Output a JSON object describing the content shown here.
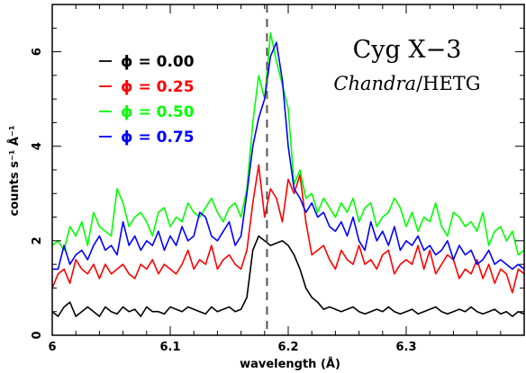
{
  "chart_data": {
    "type": "line",
    "title": "Cyg X−3",
    "subtitle_italic": "Chandra",
    "subtitle_rest": "/HETG",
    "xlabel": "wavelength (Å)",
    "ylabel": "counts s⁻¹ Å⁻¹",
    "xlim": [
      6.0,
      6.4
    ],
    "ylim": [
      0,
      7
    ],
    "xticks": [
      6.0,
      6.1,
      6.2,
      6.3
    ],
    "xtick_labels": [
      "6",
      "6.1",
      "6.2",
      "6.3"
    ],
    "yticks": [
      0,
      2,
      4,
      6
    ],
    "ytick_labels": [
      "0",
      "2",
      "4",
      "6"
    ],
    "reference_line": 6.182,
    "legend_placement": "top-left",
    "grid": false,
    "x": [
      6.0,
      6.005,
      6.01,
      6.015,
      6.02,
      6.025,
      6.03,
      6.035,
      6.04,
      6.045,
      6.05,
      6.055,
      6.06,
      6.065,
      6.07,
      6.075,
      6.08,
      6.085,
      6.09,
      6.095,
      6.1,
      6.105,
      6.11,
      6.115,
      6.12,
      6.125,
      6.13,
      6.135,
      6.14,
      6.145,
      6.15,
      6.155,
      6.16,
      6.165,
      6.17,
      6.175,
      6.18,
      6.185,
      6.19,
      6.195,
      6.2,
      6.205,
      6.21,
      6.215,
      6.22,
      6.225,
      6.23,
      6.235,
      6.24,
      6.245,
      6.25,
      6.255,
      6.26,
      6.265,
      6.27,
      6.275,
      6.28,
      6.285,
      6.29,
      6.295,
      6.3,
      6.305,
      6.31,
      6.315,
      6.32,
      6.325,
      6.33,
      6.335,
      6.34,
      6.345,
      6.35,
      6.355,
      6.36,
      6.365,
      6.37,
      6.375,
      6.38,
      6.385,
      6.39,
      6.395,
      6.4
    ],
    "series": [
      {
        "name": "ϕ = 0.00",
        "color": "#000000",
        "values": [
          0.5,
          0.4,
          0.6,
          0.7,
          0.4,
          0.5,
          0.6,
          0.5,
          0.4,
          0.6,
          0.5,
          0.45,
          0.6,
          0.5,
          0.55,
          0.4,
          0.6,
          0.5,
          0.5,
          0.45,
          0.6,
          0.55,
          0.5,
          0.6,
          0.55,
          0.5,
          0.45,
          0.6,
          0.5,
          0.55,
          0.6,
          0.5,
          0.55,
          0.8,
          1.8,
          2.1,
          2.0,
          1.9,
          1.95,
          2.0,
          1.9,
          1.7,
          1.4,
          1.0,
          0.8,
          0.7,
          0.55,
          0.6,
          0.55,
          0.5,
          0.55,
          0.6,
          0.5,
          0.45,
          0.5,
          0.55,
          0.5,
          0.6,
          0.5,
          0.45,
          0.5,
          0.55,
          0.45,
          0.5,
          0.55,
          0.6,
          0.5,
          0.45,
          0.5,
          0.55,
          0.5,
          0.6,
          0.5,
          0.45,
          0.5,
          0.55,
          0.45,
          0.5,
          0.4,
          0.5,
          0.45
        ]
      },
      {
        "name": "ϕ = 0.25",
        "color": "#ff0000",
        "values": [
          1.0,
          1.3,
          1.4,
          1.1,
          1.6,
          1.4,
          1.3,
          1.5,
          1.2,
          1.5,
          1.3,
          1.4,
          1.5,
          1.3,
          1.2,
          1.5,
          1.4,
          1.6,
          1.3,
          1.5,
          1.4,
          1.3,
          1.5,
          1.8,
          1.4,
          1.6,
          1.5,
          1.9,
          1.4,
          1.6,
          1.7,
          1.5,
          1.4,
          1.8,
          2.8,
          3.6,
          2.5,
          3.1,
          2.9,
          2.4,
          3.3,
          3.0,
          3.4,
          2.4,
          1.7,
          1.8,
          1.9,
          1.6,
          1.4,
          1.8,
          1.6,
          1.5,
          1.9,
          1.5,
          1.6,
          1.4,
          1.7,
          1.8,
          1.3,
          1.5,
          1.6,
          1.5,
          1.9,
          1.4,
          1.8,
          1.3,
          1.5,
          1.7,
          1.6,
          1.2,
          1.4,
          1.3,
          1.6,
          1.2,
          1.5,
          1.1,
          1.4,
          1.3,
          0.9,
          1.4,
          1.3
        ]
      },
      {
        "name": "ϕ = 0.50",
        "color": "#00ff00",
        "values": [
          1.9,
          2.0,
          1.8,
          2.3,
          2.1,
          2.4,
          1.9,
          2.6,
          2.3,
          2.2,
          2.1,
          3.1,
          2.8,
          2.3,
          2.5,
          2.6,
          2.4,
          2.1,
          2.6,
          2.7,
          2.3,
          2.5,
          2.4,
          2.8,
          2.6,
          2.5,
          2.7,
          2.9,
          2.6,
          2.4,
          2.7,
          2.8,
          2.5,
          3.1,
          4.5,
          5.5,
          5.0,
          6.4,
          5.8,
          5.3,
          4.8,
          3.2,
          3.5,
          2.9,
          3.0,
          2.6,
          2.9,
          2.7,
          2.5,
          2.8,
          2.6,
          2.9,
          2.4,
          2.7,
          2.8,
          2.3,
          2.5,
          2.6,
          2.9,
          2.7,
          2.3,
          2.6,
          2.2,
          2.5,
          2.4,
          2.8,
          2.3,
          2.1,
          2.6,
          2.5,
          2.3,
          2.4,
          2.2,
          2.6,
          1.9,
          2.2,
          2.3,
          2.0,
          2.2,
          1.7,
          1.8
        ]
      },
      {
        "name": "ϕ = 0.75",
        "color": "#0000ff",
        "values": [
          1.4,
          1.4,
          1.9,
          1.5,
          1.7,
          1.8,
          1.6,
          1.9,
          2.1,
          1.8,
          1.9,
          1.7,
          2.4,
          1.9,
          2.1,
          1.8,
          2.0,
          1.9,
          2.2,
          1.8,
          2.1,
          1.9,
          2.3,
          2.0,
          2.1,
          2.6,
          2.5,
          2.1,
          2.0,
          2.2,
          2.4,
          1.9,
          2.1,
          3.0,
          4.0,
          4.6,
          5.0,
          5.9,
          6.2,
          5.4,
          4.0,
          3.1,
          2.9,
          2.6,
          2.8,
          2.5,
          2.6,
          2.3,
          2.2,
          2.4,
          2.1,
          2.5,
          2.0,
          1.8,
          2.4,
          2.0,
          2.2,
          1.9,
          2.3,
          1.8,
          2.0,
          1.9,
          2.1,
          1.8,
          1.9,
          1.7,
          1.8,
          2.0,
          1.6,
          1.9,
          1.7,
          1.8,
          1.5,
          1.6,
          1.8,
          1.5,
          1.6,
          1.5,
          1.4,
          1.5,
          1.4
        ]
      }
    ]
  }
}
